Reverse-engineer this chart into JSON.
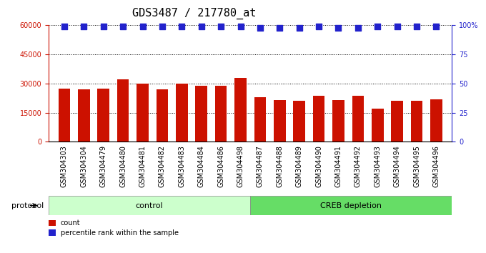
{
  "title": "GDS3487 / 217780_at",
  "categories": [
    "GSM304303",
    "GSM304304",
    "GSM304479",
    "GSM304480",
    "GSM304481",
    "GSM304482",
    "GSM304483",
    "GSM304484",
    "GSM304486",
    "GSM304498",
    "GSM304487",
    "GSM304488",
    "GSM304489",
    "GSM304490",
    "GSM304491",
    "GSM304492",
    "GSM304493",
    "GSM304494",
    "GSM304495",
    "GSM304496"
  ],
  "bar_values": [
    27500,
    27000,
    27500,
    32000,
    30000,
    27000,
    30000,
    29000,
    29000,
    33000,
    23000,
    21500,
    21000,
    23500,
    21500,
    23500,
    17000,
    21000,
    21000,
    22000
  ],
  "percentile_values": [
    99,
    99,
    99,
    99,
    99,
    99,
    99,
    99,
    99,
    99,
    98,
    98,
    98,
    99,
    98,
    98,
    99,
    99,
    99,
    99
  ],
  "bar_color": "#cc1100",
  "percentile_color": "#2222cc",
  "ylim_left": [
    0,
    60000
  ],
  "ylim_right": [
    0,
    100
  ],
  "yticks_left": [
    0,
    15000,
    30000,
    45000,
    60000
  ],
  "yticks_right": [
    0,
    25,
    50,
    75,
    100
  ],
  "ytick_labels_right": [
    "0",
    "25",
    "50",
    "75",
    "100%"
  ],
  "control_samples": 10,
  "control_label": "control",
  "creb_label": "CREB depletion",
  "protocol_label": "protocol",
  "legend_count_label": "count",
  "legend_percentile_label": "percentile rank within the sample",
  "control_bg": "#ccffcc",
  "creb_bg": "#66dd66",
  "label_bg": "#cccccc",
  "title_fontsize": 11,
  "tick_fontsize": 7,
  "bar_width": 0.6
}
